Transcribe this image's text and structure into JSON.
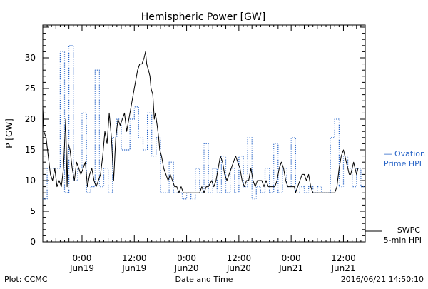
{
  "chart_data": {
    "type": "line",
    "title": "Hemispheric Power [GW]",
    "xlabel": "Date and Time",
    "ylabel": "P [GW]",
    "ylim": [
      0,
      35
    ],
    "yticks": [
      0,
      5,
      10,
      15,
      20,
      25,
      30
    ],
    "xlim": [
      "2016-06-18T15:00",
      "2016-06-21T17:00"
    ],
    "xticks": [
      {
        "time": "2016-06-19T00:00",
        "line1": "0:00",
        "line2": "Jun19"
      },
      {
        "time": "2016-06-19T12:00",
        "line1": "12:00",
        "line2": "Jun19"
      },
      {
        "time": "2016-06-20T00:00",
        "line1": "0:00",
        "line2": "Jun20"
      },
      {
        "time": "2016-06-20T12:00",
        "line1": "12:00",
        "line2": "Jun20"
      },
      {
        "time": "2016-06-21T00:00",
        "line1": "0:00",
        "line2": "Jun21"
      },
      {
        "time": "2016-06-21T12:00",
        "line1": "12:00",
        "line2": "Jun21"
      }
    ],
    "grid": false,
    "legend_placement": "right",
    "series": [
      {
        "name_line1": "— Ovation",
        "name_line2": "Prime HPI",
        "color": "#2a66c8",
        "style": "dotted",
        "step": true,
        "points": [
          [
            "2016-06-18T15:00",
            7
          ],
          [
            "2016-06-18T16:00",
            12
          ],
          [
            "2016-06-18T18:00",
            12
          ],
          [
            "2016-06-18T19:00",
            31
          ],
          [
            "2016-06-18T20:00",
            8
          ],
          [
            "2016-06-18T21:00",
            32
          ],
          [
            "2016-06-18T22:00",
            10
          ],
          [
            "2016-06-18T23:00",
            12
          ],
          [
            "2016-06-19T00:00",
            21
          ],
          [
            "2016-06-19T01:00",
            8
          ],
          [
            "2016-06-19T02:00",
            9
          ],
          [
            "2016-06-19T03:00",
            28
          ],
          [
            "2016-06-19T04:00",
            9
          ],
          [
            "2016-06-19T05:00",
            12
          ],
          [
            "2016-06-19T06:00",
            8
          ],
          [
            "2016-06-19T07:00",
            17
          ],
          [
            "2016-06-19T08:00",
            20
          ],
          [
            "2016-06-19T09:00",
            15
          ],
          [
            "2016-06-19T10:00",
            15
          ],
          [
            "2016-06-19T11:00",
            20
          ],
          [
            "2016-06-19T12:00",
            22
          ],
          [
            "2016-06-19T13:00",
            17
          ],
          [
            "2016-06-19T14:00",
            15
          ],
          [
            "2016-06-19T15:00",
            21
          ],
          [
            "2016-06-19T16:00",
            14
          ],
          [
            "2016-06-19T17:00",
            17
          ],
          [
            "2016-06-19T18:00",
            8
          ],
          [
            "2016-06-19T19:00",
            8
          ],
          [
            "2016-06-19T20:00",
            13
          ],
          [
            "2016-06-19T21:00",
            8
          ],
          [
            "2016-06-19T22:00",
            8
          ],
          [
            "2016-06-19T23:00",
            7
          ],
          [
            "2016-06-20T00:00",
            8
          ],
          [
            "2016-06-20T01:00",
            7
          ],
          [
            "2016-06-20T02:00",
            12
          ],
          [
            "2016-06-20T03:00",
            8
          ],
          [
            "2016-06-20T04:00",
            16
          ],
          [
            "2016-06-20T05:00",
            8
          ],
          [
            "2016-06-20T06:00",
            12
          ],
          [
            "2016-06-20T07:00",
            8
          ],
          [
            "2016-06-20T08:00",
            14
          ],
          [
            "2016-06-20T09:00",
            8
          ],
          [
            "2016-06-20T10:00",
            12
          ],
          [
            "2016-06-20T11:00",
            8
          ],
          [
            "2016-06-20T12:00",
            14
          ],
          [
            "2016-06-20T13:00",
            9
          ],
          [
            "2016-06-20T14:00",
            17
          ],
          [
            "2016-06-20T15:00",
            7
          ],
          [
            "2016-06-20T16:00",
            9
          ],
          [
            "2016-06-20T17:00",
            8
          ],
          [
            "2016-06-20T18:00",
            12
          ],
          [
            "2016-06-20T19:00",
            8
          ],
          [
            "2016-06-20T20:00",
            16
          ],
          [
            "2016-06-20T21:00",
            8
          ],
          [
            "2016-06-20T22:00",
            12
          ],
          [
            "2016-06-20T23:00",
            9
          ],
          [
            "2016-06-21T00:00",
            17
          ],
          [
            "2016-06-21T01:00",
            8
          ],
          [
            "2016-06-21T02:00",
            9
          ],
          [
            "2016-06-21T03:00",
            8
          ],
          [
            "2016-06-21T04:00",
            9
          ],
          [
            "2016-06-21T05:00",
            8
          ],
          [
            "2016-06-21T06:00",
            9
          ],
          [
            "2016-06-21T07:00",
            8
          ],
          [
            "2016-06-21T08:00",
            8
          ],
          [
            "2016-06-21T09:00",
            17
          ],
          [
            "2016-06-21T10:00",
            20
          ],
          [
            "2016-06-21T11:00",
            9
          ],
          [
            "2016-06-21T12:00",
            14
          ],
          [
            "2016-06-21T13:00",
            12
          ],
          [
            "2016-06-21T14:00",
            9
          ],
          [
            "2016-06-21T15:00",
            12
          ],
          [
            "2016-06-21T16:00",
            9
          ],
          [
            "2016-06-21T17:00",
            9
          ]
        ]
      },
      {
        "name_line1": "SWPC",
        "name_line2": "5-min HPI",
        "color": "#000000",
        "style": "solid",
        "step": false,
        "points": [
          [
            "2016-06-18T15:00",
            22
          ],
          [
            "2016-06-18T15:15",
            18
          ],
          [
            "2016-06-18T15:45",
            17
          ],
          [
            "2016-06-18T16:15",
            14
          ],
          [
            "2016-06-18T16:45",
            11
          ],
          [
            "2016-06-18T17:15",
            10
          ],
          [
            "2016-06-18T17:45",
            12
          ],
          [
            "2016-06-18T18:15",
            9
          ],
          [
            "2016-06-18T18:45",
            10
          ],
          [
            "2016-06-18T19:15",
            9
          ],
          [
            "2016-06-18T19:45",
            12
          ],
          [
            "2016-06-18T20:15",
            20
          ],
          [
            "2016-06-18T20:35",
            9
          ],
          [
            "2016-06-18T20:50",
            16
          ],
          [
            "2016-06-18T21:15",
            15
          ],
          [
            "2016-06-18T21:45",
            12
          ],
          [
            "2016-06-18T22:15",
            10
          ],
          [
            "2016-06-18T22:45",
            13
          ],
          [
            "2016-06-18T23:15",
            12
          ],
          [
            "2016-06-18T23:45",
            11
          ],
          [
            "2016-06-19T00:15",
            12
          ],
          [
            "2016-06-19T00:45",
            13
          ],
          [
            "2016-06-19T01:15",
            9
          ],
          [
            "2016-06-19T01:45",
            11
          ],
          [
            "2016-06-19T02:15",
            12
          ],
          [
            "2016-06-19T02:45",
            10
          ],
          [
            "2016-06-19T03:15",
            9
          ],
          [
            "2016-06-19T03:45",
            10
          ],
          [
            "2016-06-19T04:15",
            11
          ],
          [
            "2016-06-19T04:45",
            14
          ],
          [
            "2016-06-19T05:15",
            18
          ],
          [
            "2016-06-19T05:45",
            16
          ],
          [
            "2016-06-19T06:15",
            21
          ],
          [
            "2016-06-19T06:45",
            17
          ],
          [
            "2016-06-19T07:15",
            10
          ],
          [
            "2016-06-19T07:45",
            17
          ],
          [
            "2016-06-19T08:15",
            20
          ],
          [
            "2016-06-19T08:45",
            19
          ],
          [
            "2016-06-19T09:15",
            20
          ],
          [
            "2016-06-19T09:45",
            21
          ],
          [
            "2016-06-19T10:15",
            18
          ],
          [
            "2016-06-19T10:45",
            20
          ],
          [
            "2016-06-19T11:15",
            22
          ],
          [
            "2016-06-19T11:45",
            24
          ],
          [
            "2016-06-19T12:15",
            26
          ],
          [
            "2016-06-19T12:45",
            28
          ],
          [
            "2016-06-19T13:15",
            29
          ],
          [
            "2016-06-19T13:45",
            29
          ],
          [
            "2016-06-19T14:15",
            30
          ],
          [
            "2016-06-19T14:35",
            31
          ],
          [
            "2016-06-19T14:50",
            29
          ],
          [
            "2016-06-19T15:15",
            28
          ],
          [
            "2016-06-19T15:35",
            27
          ],
          [
            "2016-06-19T15:50",
            25
          ],
          [
            "2016-06-19T16:15",
            24
          ],
          [
            "2016-06-19T16:35",
            20
          ],
          [
            "2016-06-19T16:50",
            21
          ],
          [
            "2016-06-19T17:15",
            19
          ],
          [
            "2016-06-19T17:35",
            17
          ],
          [
            "2016-06-19T17:50",
            15
          ],
          [
            "2016-06-19T18:15",
            14
          ],
          [
            "2016-06-19T18:45",
            12
          ],
          [
            "2016-06-19T19:15",
            11
          ],
          [
            "2016-06-19T19:45",
            10
          ],
          [
            "2016-06-19T20:15",
            11
          ],
          [
            "2016-06-19T20:45",
            10
          ],
          [
            "2016-06-19T21:15",
            9
          ],
          [
            "2016-06-19T21:45",
            9
          ],
          [
            "2016-06-19T22:15",
            8
          ],
          [
            "2016-06-19T22:45",
            9
          ],
          [
            "2016-06-19T23:15",
            8
          ],
          [
            "2016-06-20T00:00",
            8
          ],
          [
            "2016-06-20T00:45",
            8
          ],
          [
            "2016-06-20T01:30",
            8
          ],
          [
            "2016-06-20T02:15",
            8
          ],
          [
            "2016-06-20T03:00",
            8
          ],
          [
            "2016-06-20T03:30",
            9
          ],
          [
            "2016-06-20T04:00",
            8
          ],
          [
            "2016-06-20T04:30",
            9
          ],
          [
            "2016-06-20T05:00",
            9
          ],
          [
            "2016-06-20T05:45",
            10
          ],
          [
            "2016-06-20T06:15",
            9
          ],
          [
            "2016-06-20T06:45",
            10
          ],
          [
            "2016-06-20T07:15",
            12
          ],
          [
            "2016-06-20T07:45",
            14
          ],
          [
            "2016-06-20T08:15",
            13
          ],
          [
            "2016-06-20T08:45",
            11
          ],
          [
            "2016-06-20T09:15",
            10
          ],
          [
            "2016-06-20T09:45",
            11
          ],
          [
            "2016-06-20T10:15",
            12
          ],
          [
            "2016-06-20T10:45",
            13
          ],
          [
            "2016-06-20T11:15",
            14
          ],
          [
            "2016-06-20T11:45",
            13
          ],
          [
            "2016-06-20T12:15",
            12
          ],
          [
            "2016-06-20T12:45",
            10
          ],
          [
            "2016-06-20T13:15",
            9
          ],
          [
            "2016-06-20T13:45",
            10
          ],
          [
            "2016-06-20T14:15",
            10
          ],
          [
            "2016-06-20T14:45",
            12
          ],
          [
            "2016-06-20T15:15",
            10
          ],
          [
            "2016-06-20T15:45",
            9
          ],
          [
            "2016-06-20T16:15",
            10
          ],
          [
            "2016-06-20T16:45",
            10
          ],
          [
            "2016-06-20T17:15",
            10
          ],
          [
            "2016-06-20T17:45",
            9
          ],
          [
            "2016-06-20T18:15",
            10
          ],
          [
            "2016-06-20T18:45",
            9
          ],
          [
            "2016-06-20T19:15",
            9
          ],
          [
            "2016-06-20T19:45",
            9
          ],
          [
            "2016-06-20T20:15",
            9
          ],
          [
            "2016-06-20T20:45",
            10
          ],
          [
            "2016-06-20T21:15",
            12
          ],
          [
            "2016-06-20T21:45",
            13
          ],
          [
            "2016-06-20T22:15",
            12
          ],
          [
            "2016-06-20T22:45",
            10
          ],
          [
            "2016-06-20T23:15",
            9
          ],
          [
            "2016-06-21T00:00",
            9
          ],
          [
            "2016-06-21T00:45",
            9
          ],
          [
            "2016-06-21T01:00",
            8
          ],
          [
            "2016-06-21T01:30",
            9
          ],
          [
            "2016-06-21T02:00",
            10
          ],
          [
            "2016-06-21T02:30",
            11
          ],
          [
            "2016-06-21T03:00",
            11
          ],
          [
            "2016-06-21T03:30",
            10
          ],
          [
            "2016-06-21T04:00",
            11
          ],
          [
            "2016-06-21T04:30",
            9
          ],
          [
            "2016-06-21T05:00",
            8
          ],
          [
            "2016-06-21T06:00",
            8
          ],
          [
            "2016-06-21T07:00",
            8
          ],
          [
            "2016-06-21T08:00",
            8
          ],
          [
            "2016-06-21T09:00",
            8
          ],
          [
            "2016-06-21T10:00",
            8
          ],
          [
            "2016-06-21T10:30",
            9
          ],
          [
            "2016-06-21T11:00",
            12
          ],
          [
            "2016-06-21T11:30",
            14
          ],
          [
            "2016-06-21T12:00",
            15
          ],
          [
            "2016-06-21T12:20",
            14
          ],
          [
            "2016-06-21T12:40",
            13
          ],
          [
            "2016-06-21T13:00",
            12
          ],
          [
            "2016-06-21T13:20",
            11
          ],
          [
            "2016-06-21T13:40",
            11
          ],
          [
            "2016-06-21T14:00",
            12
          ],
          [
            "2016-06-21T14:20",
            13
          ],
          [
            "2016-06-21T14:40",
            12
          ],
          [
            "2016-06-21T15:00",
            11
          ],
          [
            "2016-06-21T15:20",
            12
          ]
        ]
      }
    ]
  },
  "footer": {
    "plot_credit": "Plot: CCMC",
    "timestamp": "2016/06/21 14:50:10"
  }
}
